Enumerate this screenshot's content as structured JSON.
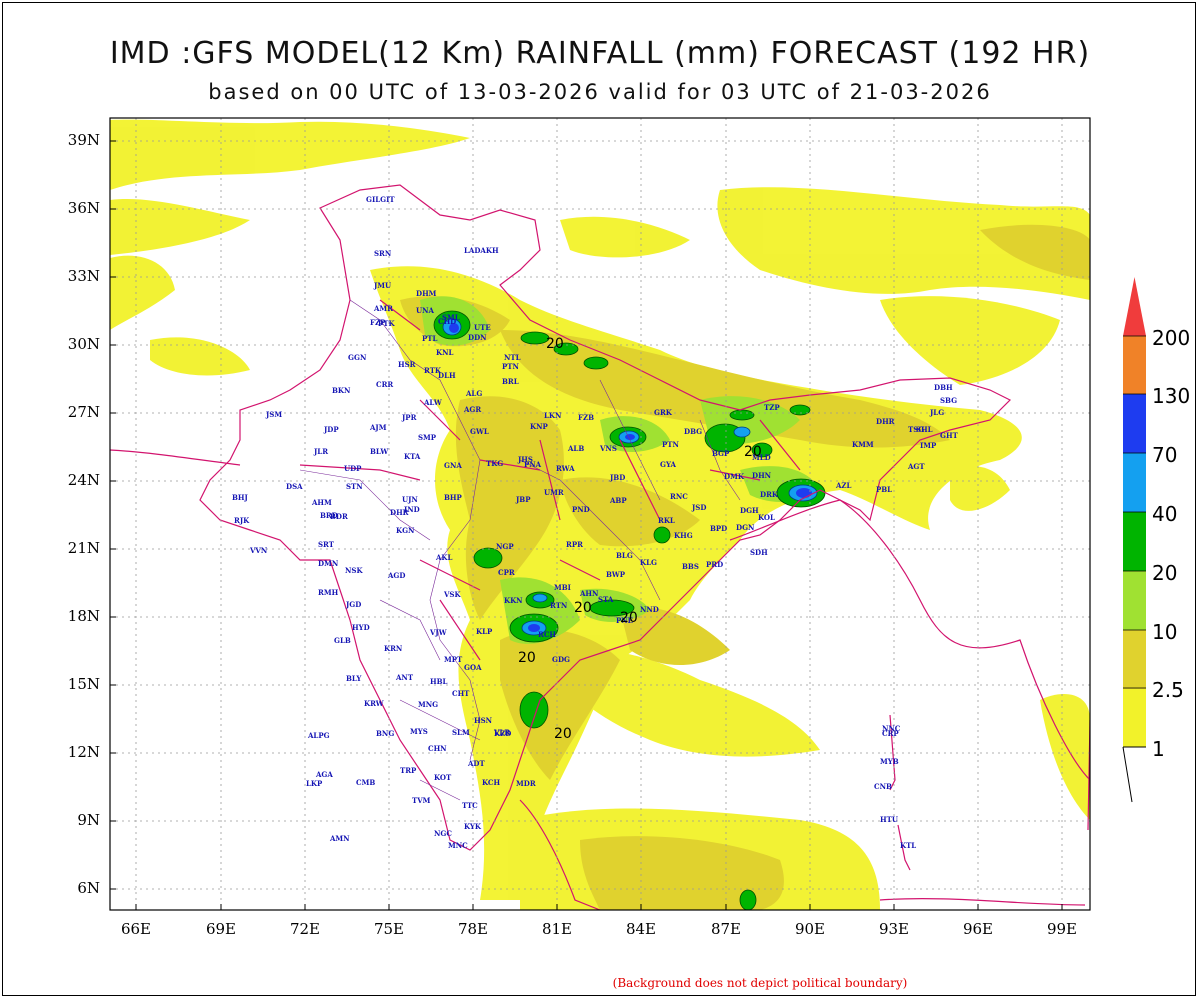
{
  "title": "IMD :GFS MODEL(12 Km) RAINFALL (mm) FORECAST (192 HR)",
  "subtitle": "based on 00 UTC of 13-03-2026 valid for 03 UTC of 21-03-2026",
  "lat_labels": [
    "39N",
    "36N",
    "33N",
    "30N",
    "27N",
    "24N",
    "21N",
    "18N",
    "15N",
    "12N",
    "9N",
    "6N"
  ],
  "lon_labels": [
    "66E",
    "69E",
    "72E",
    "75E",
    "78E",
    "81E",
    "84E",
    "87E",
    "90E",
    "93E",
    "96E",
    "99E"
  ],
  "legend": {
    "levels": [
      "1",
      "2.5",
      "10",
      "20",
      "40",
      "70",
      "130",
      "200"
    ],
    "colors": [
      "#f2f22a",
      "#e0d22e",
      "#a0e132",
      "#00b400",
      "#14a0f0",
      "#1e3cf0",
      "#f08228",
      "#f03c3c"
    ]
  },
  "contour_labels": [
    "20",
    "20",
    "20",
    "20",
    "20",
    "20"
  ],
  "stations": [
    "GILGIT",
    "LADAKH",
    "SRN",
    "JMU",
    "DHM",
    "AMR",
    "PTK",
    "UNA",
    "SML",
    "FZP",
    "PTL",
    "DDN",
    "UTE",
    "CHD",
    "KNL",
    "NTL",
    "PTN",
    "GGN",
    "HSR",
    "RTK",
    "DLH",
    "BRL",
    "BKN",
    "CRR",
    "ALG",
    "ALW",
    "AGR",
    "JSM",
    "JPR",
    "LKN",
    "FZB",
    "GRK",
    "JDP",
    "AJM",
    "SMP",
    "GWL",
    "KNP",
    "JLR",
    "BLW",
    "KTA",
    "JHS",
    "ALB",
    "VNS",
    "PTN",
    "DBG",
    "BGP",
    "UDP",
    "GNA",
    "TKG",
    "STN",
    "PNA",
    "RWA",
    "GYA",
    "MLD",
    "DMK",
    "JBD",
    "DHN",
    "BHJ",
    "DSA",
    "AHM",
    "BDR",
    "UJN",
    "BHP",
    "JBP",
    "UMR",
    "ABP",
    "RNC",
    "DGN",
    "KOL",
    "DRK",
    "RJK",
    "VVN",
    "BRD",
    "DHR",
    "IND",
    "PND",
    "RKL",
    "JSD",
    "KHG",
    "RPR",
    "BPD",
    "DGH",
    "SRT",
    "KGN",
    "AKL",
    "NGP",
    "BLG",
    "KLG",
    "BBS",
    "PRD",
    "SDH",
    "DMN",
    "NSK",
    "AGD",
    "CPR",
    "BWP",
    "MBI",
    "AHN",
    "PNE",
    "NND",
    "RMH",
    "JGD",
    "VSK",
    "KKN",
    "RTN",
    "STA",
    "GLB",
    "HYD",
    "VJW",
    "KLP",
    "RCH",
    "KRN",
    "MPT",
    "GOA",
    "GDG",
    "BLY",
    "ANT",
    "HBL",
    "CHT",
    "KRW",
    "MNG",
    "HSN",
    "BNG",
    "MYS",
    "SLM",
    "VLR",
    "CHN",
    "ADT",
    "KZD",
    "CMB",
    "TRP",
    "KOT",
    "KCH",
    "MDR",
    "TVM",
    "TTC",
    "NGC",
    "KYK",
    "MNC",
    "AMN",
    "AGA",
    "LKP",
    "ALPG",
    "DBH",
    "SBG",
    "JLG",
    "GHT",
    "TZP",
    "DHR",
    "TSG",
    "SHL",
    "KMM",
    "IMP",
    "AGT",
    "AZL",
    "PBL",
    "MYB",
    "CNB",
    "HTU",
    "CRP",
    "NNC",
    "KTL"
  ],
  "note": "(Background does not depict political boundary)"
}
